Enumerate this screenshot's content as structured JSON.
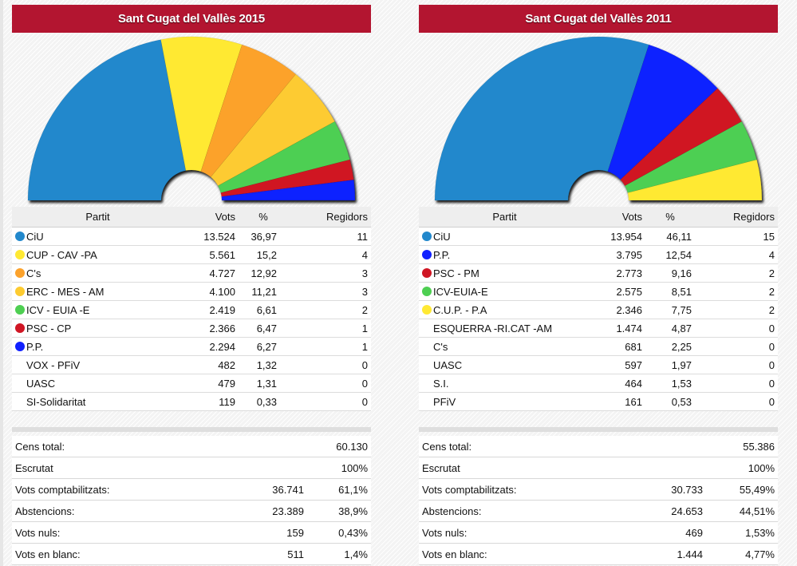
{
  "panels": [
    {
      "title": "Sant Cugat del Vallès 2015",
      "headers": {
        "party": "Partit",
        "votes": "Vots",
        "pct": "%",
        "seats": "Regidors"
      },
      "parties": [
        {
          "name": "CiU",
          "votes": "13.524",
          "pct": "36,97",
          "seats": "11",
          "color": "#2288cc",
          "icon": "dot"
        },
        {
          "name": "CUP - CAV -PA",
          "votes": "5.561",
          "pct": "15,2",
          "seats": "4",
          "color": "#ffe933",
          "icon": "dot"
        },
        {
          "name": "C's",
          "votes": "4.727",
          "pct": "12,92",
          "seats": "3",
          "color": "#fca22b",
          "icon": "dot"
        },
        {
          "name": "ERC - MES - AM",
          "votes": "4.100",
          "pct": "11,21",
          "seats": "3",
          "color": "#fdcb30",
          "icon": "dot"
        },
        {
          "name": "ICV - EUIA -E",
          "votes": "2.419",
          "pct": "6,61",
          "seats": "2",
          "color": "#4ecf52",
          "icon": "dot"
        },
        {
          "name": "PSC - CP",
          "votes": "2.366",
          "pct": "6,47",
          "seats": "1",
          "color": "#d01624",
          "icon": "dot"
        },
        {
          "name": "P.P.",
          "votes": "2.294",
          "pct": "6,27",
          "seats": "1",
          "color": "#1020ff",
          "icon": "dot"
        },
        {
          "name": "VOX - PFiV",
          "votes": "482",
          "pct": "1,32",
          "seats": "0",
          "color": "",
          "icon": "none"
        },
        {
          "name": "UASC",
          "votes": "479",
          "pct": "1,31",
          "seats": "0",
          "color": "",
          "icon": "none"
        },
        {
          "name": "SI-Solidaritat",
          "votes": "119",
          "pct": "0,33",
          "seats": "0",
          "color": "",
          "icon": "none"
        }
      ],
      "summary": [
        {
          "label": "Cens total:",
          "value": "",
          "pct": "60.130"
        },
        {
          "label": "Escrutat",
          "value": "",
          "pct": "100%"
        },
        {
          "label": "Vots comptabilitzats:",
          "value": "36.741",
          "pct": "61,1%"
        },
        {
          "label": "Abstencions:",
          "value": "23.389",
          "pct": "38,9%"
        },
        {
          "label": "Vots nuls:",
          "value": "159",
          "pct": "0,43%"
        },
        {
          "label": "Vots en blanc:",
          "value": "511",
          "pct": "1,4%"
        }
      ]
    },
    {
      "title": "Sant Cugat del Vallès 2011",
      "headers": {
        "party": "Partit",
        "votes": "Vots",
        "pct": "%",
        "seats": "Regidors"
      },
      "parties": [
        {
          "name": "CiU",
          "votes": "13.954",
          "pct": "46,11",
          "seats": "15",
          "color": "#2288cc",
          "icon": "dot"
        },
        {
          "name": "P.P.",
          "votes": "3.795",
          "pct": "12,54",
          "seats": "4",
          "color": "#1020ff",
          "icon": "dot"
        },
        {
          "name": "PSC - PM",
          "votes": "2.773",
          "pct": "9,16",
          "seats": "2",
          "color": "#d01624",
          "icon": "dot"
        },
        {
          "name": "ICV-EUIA-E",
          "votes": "2.575",
          "pct": "8,51",
          "seats": "2",
          "color": "#4ecf52",
          "icon": "dot"
        },
        {
          "name": "C.U.P. - P.A",
          "votes": "2.346",
          "pct": "7,75",
          "seats": "2",
          "color": "#ffe933",
          "icon": "dot"
        },
        {
          "name": "ESQUERRA -RI.CAT -AM",
          "votes": "1.474",
          "pct": "4,87",
          "seats": "0",
          "color": "",
          "icon": "none"
        },
        {
          "name": "C's",
          "votes": "681",
          "pct": "2,25",
          "seats": "0",
          "color": "",
          "icon": "none"
        },
        {
          "name": "UASC",
          "votes": "597",
          "pct": "1,97",
          "seats": "0",
          "color": "",
          "icon": "none"
        },
        {
          "name": "S.I.",
          "votes": "464",
          "pct": "1,53",
          "seats": "0",
          "color": "",
          "icon": "none"
        },
        {
          "name": "PFiV",
          "votes": "161",
          "pct": "0,53",
          "seats": "0",
          "color": "",
          "icon": "none"
        }
      ],
      "summary": [
        {
          "label": "Cens total:",
          "value": "",
          "pct": "55.386"
        },
        {
          "label": "Escrutat",
          "value": "",
          "pct": "100%"
        },
        {
          "label": "Vots comptabilitzats:",
          "value": "30.733",
          "pct": "55,49%"
        },
        {
          "label": "Abstencions:",
          "value": "24.653",
          "pct": "44,51%"
        },
        {
          "label": "Vots nuls:",
          "value": "469",
          "pct": "1,53%"
        },
        {
          "label": "Vots en blanc:",
          "value": "1.444",
          "pct": "4,77%"
        }
      ]
    }
  ],
  "chart_data": [
    {
      "type": "pie",
      "subtype": "half-donut (parliament seats)",
      "title": "Sant Cugat del Vallès 2015",
      "categories": [
        "CiU",
        "CUP - CAV -PA",
        "C's",
        "ERC - MES - AM",
        "ICV - EUIA -E",
        "PSC - CP",
        "P.P."
      ],
      "values": [
        11,
        4,
        3,
        3,
        2,
        1,
        1
      ],
      "colors": [
        "#2288cc",
        "#ffe933",
        "#fca22b",
        "#fdcb30",
        "#4ecf52",
        "#d01624",
        "#1020ff"
      ],
      "unit": "Regidors"
    },
    {
      "type": "pie",
      "subtype": "half-donut (parliament seats)",
      "title": "Sant Cugat del Vallès 2011",
      "categories": [
        "CiU",
        "P.P.",
        "PSC - PM",
        "ICV-EUIA-E",
        "C.U.P. - P.A"
      ],
      "values": [
        15,
        4,
        2,
        2,
        2
      ],
      "colors": [
        "#2288cc",
        "#1020ff",
        "#d01624",
        "#4ecf52",
        "#ffe933"
      ],
      "unit": "Regidors"
    }
  ]
}
